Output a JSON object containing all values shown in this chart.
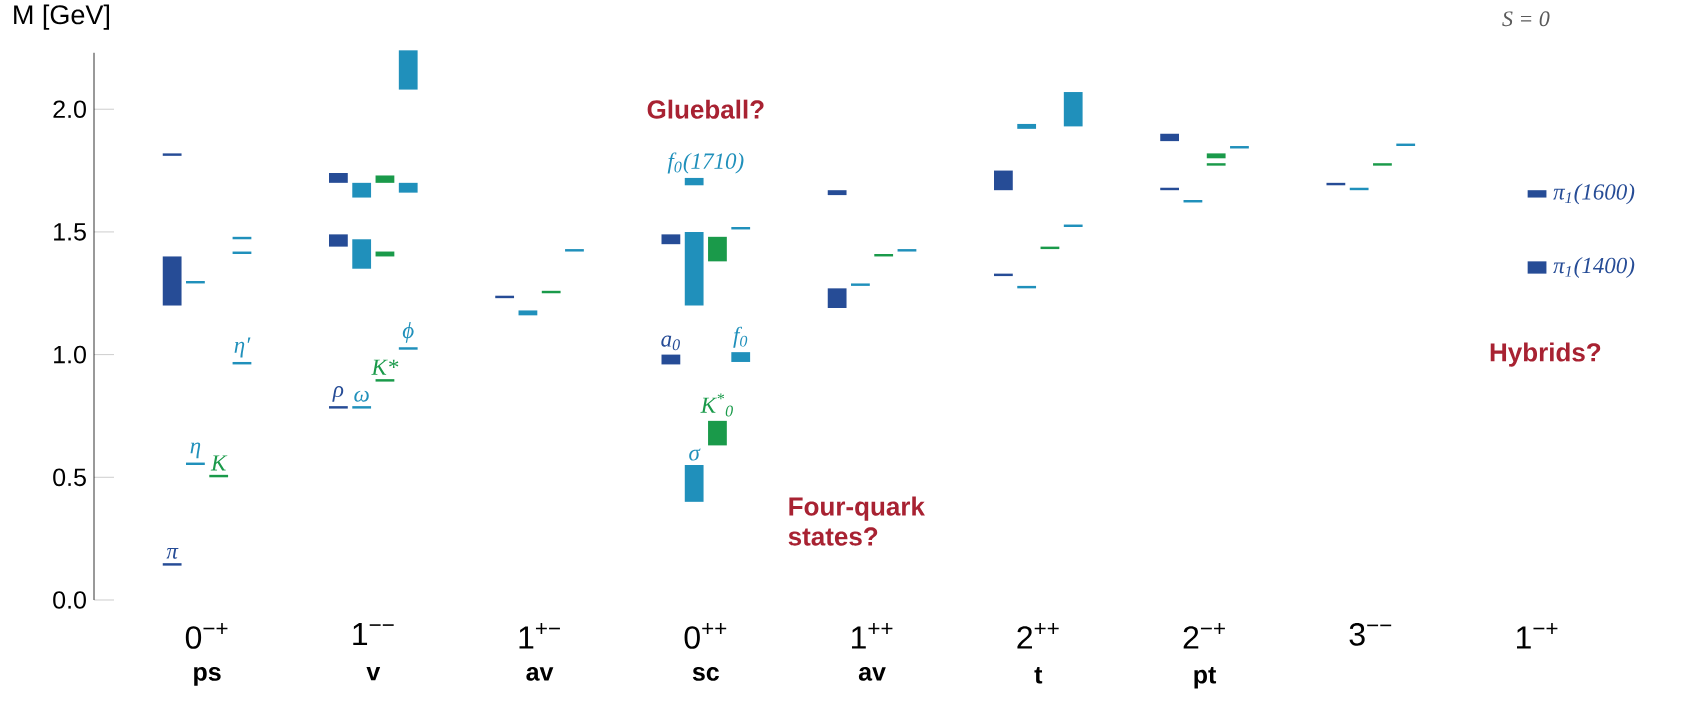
{
  "chart_data": {
    "type": "bar",
    "ylabel": "M [GeV]",
    "categories": [
      "0$^{−+}$",
      "1$^{−−}$",
      "1$^{+−}$",
      "0$^{++}$",
      "1$^{++}$",
      "2$^{++}$",
      "2$^{−+}$",
      "3$^{−−}$",
      "1$^{−+}$"
    ],
    "ylim": [
      0,
      2.23
    ],
    "yticks": [
      {
        "value": 0,
        "label": "0.0"
      },
      {
        "value": 0.5,
        "label": "0.5"
      },
      {
        "value": 1,
        "label": "1.0"
      },
      {
        "value": 1.5,
        "label": "1.5"
      },
      {
        "value": 2,
        "label": "2.0"
      }
    ],
    "grid": false,
    "series": [
      {
        "color": "#264c96",
        "base": [
          0.14,
          0.78,
          1.23,
          0.96,
          1.19,
          1.32,
          1.67,
          1.69,
          1.33
        ],
        "values": [
          0.01,
          0.01,
          0.01,
          0.04,
          0.08,
          0.01,
          0.01,
          0.01,
          0.05
        ]
      },
      {
        "color": "#264c96",
        "base": [
          1.2,
          1.44,
          null,
          1.45,
          1.65,
          1.67,
          1.87,
          null,
          1.64
        ],
        "values": [
          0.2,
          0.05,
          null,
          0.04,
          0.02,
          0.08,
          0.03,
          null,
          0.03
        ]
      },
      {
        "color": "#264c96",
        "base": [
          1.81,
          1.7,
          null,
          null,
          null,
          null,
          null,
          null,
          null
        ],
        "values": [
          0.01,
          0.04,
          null,
          null,
          null,
          null,
          null,
          null,
          null
        ]
      },
      {
        "color": "#2090bb",
        "base": [
          0.55,
          0.78,
          1.16,
          0.4,
          1.28,
          1.27,
          1.62,
          1.67,
          null
        ],
        "values": [
          0.01,
          0.01,
          0.02,
          0.15,
          0.01,
          0.01,
          0.01,
          0.01,
          null
        ]
      },
      {
        "color": "#2090bb",
        "base": [
          1.29,
          1.35,
          null,
          1.2,
          null,
          1.92,
          null,
          null,
          null
        ],
        "values": [
          0.01,
          0.12,
          null,
          0.3,
          null,
          0.02,
          null,
          null,
          null
        ]
      },
      {
        "color": "#2090bb",
        "base": [
          null,
          1.64,
          null,
          1.69,
          null,
          null,
          null,
          null,
          null
        ],
        "values": [
          null,
          0.06,
          null,
          0.03,
          null,
          null,
          null,
          null,
          null
        ]
      },
      {
        "color": "#1a9a4a",
        "base": [
          0.5,
          0.89,
          1.25,
          0.63,
          1.4,
          1.43,
          1.77,
          1.77,
          null
        ],
        "values": [
          0.01,
          0.01,
          0.01,
          0.1,
          0.01,
          0.01,
          0.01,
          0.01,
          null
        ]
      },
      {
        "color": "#1a9a4a",
        "base": [
          null,
          1.4,
          null,
          1.38,
          null,
          null,
          1.8,
          null,
          null
        ],
        "values": [
          null,
          0.02,
          null,
          0.1,
          null,
          null,
          0.02,
          null,
          null
        ]
      },
      {
        "color": "#1a9a4a",
        "base": [
          null,
          1.7,
          null,
          null,
          null,
          null,
          null,
          null,
          null
        ],
        "values": [
          null,
          0.03,
          null,
          null,
          null,
          null,
          null,
          null,
          null
        ]
      },
      {
        "color": "#2090bb",
        "base": [
          0.96,
          1.02,
          1.42,
          0.97,
          1.42,
          1.52,
          1.84,
          1.85,
          null
        ],
        "values": [
          0.01,
          0.01,
          0.01,
          0.04,
          0.01,
          0.01,
          0.01,
          0.01,
          null
        ]
      },
      {
        "color": "#2090bb",
        "base": [
          1.41,
          1.66,
          null,
          1.51,
          null,
          1.93,
          null,
          null,
          null
        ],
        "values": [
          0.01,
          0.04,
          null,
          0.01,
          null,
          0.14,
          null,
          null,
          null
        ]
      },
      {
        "color": "#2090bb",
        "base": [
          1.47,
          2.08,
          null,
          null,
          null,
          null,
          null,
          null,
          null
        ],
        "values": [
          0.01,
          0.16,
          null,
          null,
          null,
          null,
          null,
          null,
          null
        ]
      }
    ],
    "annotations": [
      "Glueball?",
      "Four-quark states?",
      "Hybrids?",
      "S = 0",
      "π",
      "η",
      "K",
      "η′",
      "ρ",
      "ω",
      "K*",
      "ϕ",
      "a$_{0}$",
      "f$_{0}$",
      "K$^{*}$$_{0}$",
      "σ",
      "f$_{0}$(1710)",
      "π$_{1}$(1600)",
      "π$_{1}$(1400)",
      "ps",
      "v",
      "av",
      "sc",
      "av",
      "t",
      "pt"
    ]
  }
}
